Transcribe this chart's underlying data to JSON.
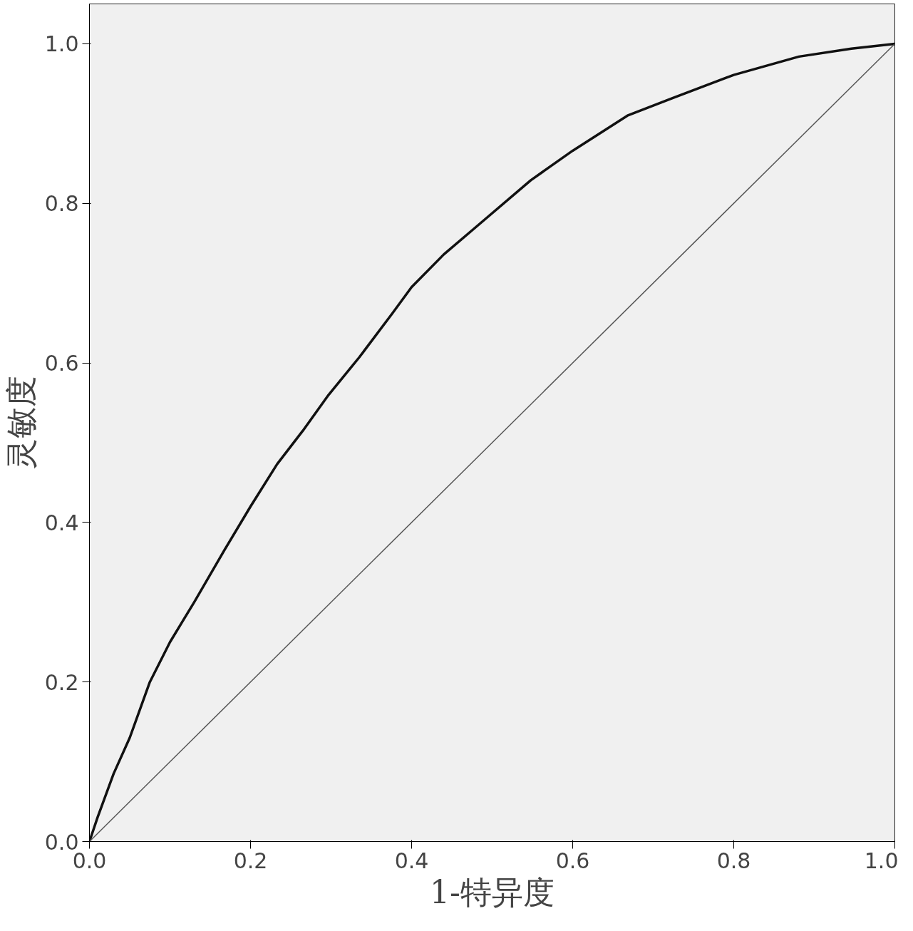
{
  "chart_data": {
    "type": "line",
    "xlabel": "1-特异度",
    "ylabel": "灵敏度",
    "xlim": [
      0,
      1
    ],
    "ylim": [
      0,
      1.05
    ],
    "xticks": [
      {
        "value": 0,
        "label": "0.0"
      },
      0.2,
      0.4,
      0.6,
      0.8,
      {
        "value": 1,
        "label": "1.0"
      }
    ],
    "yticks": [
      {
        "value": 0,
        "label": "0.0"
      },
      0.2,
      0.4,
      0.6,
      0.8,
      {
        "value": 1,
        "label": "1.0"
      }
    ],
    "grid": false,
    "marker": "none",
    "line_style": "solid",
    "series": [
      {
        "color": "#111111",
        "x": [
          0,
          0.01,
          0.03,
          0.05,
          0.075,
          0.1,
          0.13,
          0.168,
          0.2,
          0.233,
          0.265,
          0.297,
          0.335,
          0.376,
          0.4,
          0.44,
          0.483,
          0.548,
          0.6,
          0.668,
          0.724,
          0.8,
          0.881,
          0.946,
          1
        ],
        "values": [
          0,
          0.03,
          0.085,
          0.13,
          0.2,
          0.25,
          0.3,
          0.366,
          0.42,
          0.473,
          0.515,
          0.56,
          0.607,
          0.662,
          0.695,
          0.736,
          0.773,
          0.829,
          0.866,
          0.91,
          0.932,
          0.961,
          0.984,
          0.994,
          1
        ]
      },
      {
        "color": "#555555",
        "x": [
          0,
          1
        ],
        "values": [
          0,
          1
        ]
      }
    ]
  }
}
